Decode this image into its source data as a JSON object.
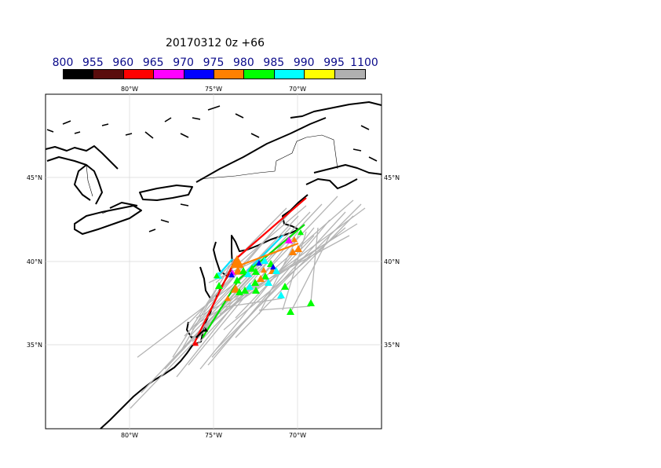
{
  "title": "20170312 0z +66",
  "colorbar": {
    "labels": [
      "800",
      "955",
      "960",
      "965",
      "970",
      "975",
      "980",
      "985",
      "990",
      "995",
      "1100"
    ],
    "colors": [
      "#000000",
      "#5a0c0c",
      "#ff0000",
      "#ff00ff",
      "#0000ff",
      "#ff8000",
      "#00ff00",
      "#00ffff",
      "#ffff00",
      "#b0b0b0"
    ]
  },
  "map": {
    "lon_labels": [
      "80°W",
      "75°W",
      "70°W"
    ],
    "lat_labels": [
      "45°N",
      "40°N",
      "35°N"
    ],
    "gridlines": true
  }
}
